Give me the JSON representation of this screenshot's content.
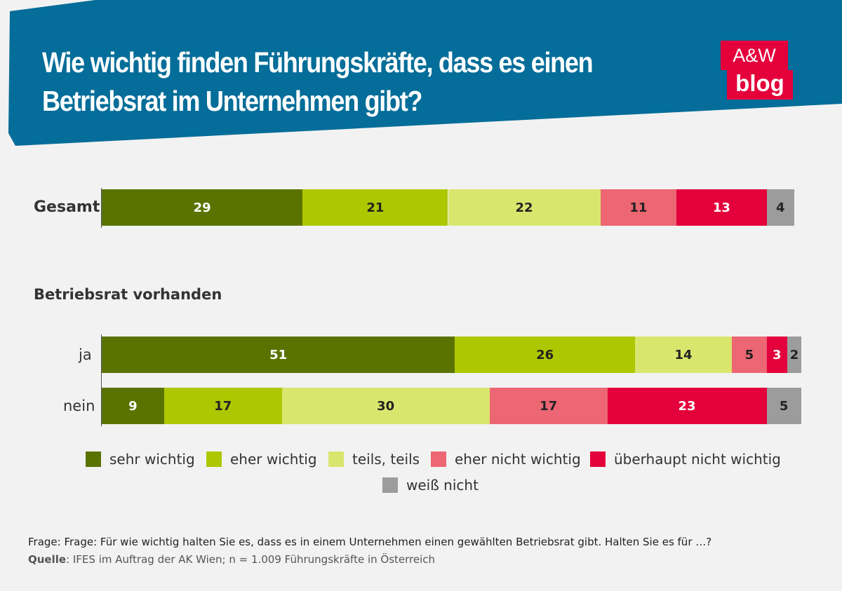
{
  "header": {
    "title_line1": "Wie wichtig finden Führungskräfte, dass es einen",
    "title_line2": "Betriebsrat im Unternehmen gibt?",
    "logo_top": "A&W",
    "logo_bottom": "blog"
  },
  "chart_data": {
    "type": "bar",
    "orientation": "horizontal",
    "stacked": true,
    "group_label": "Betriebsrat vorhanden",
    "categories": [
      "Gesamt",
      "ja",
      "nein"
    ],
    "series": [
      {
        "name": "sehr wichtig",
        "color": "#5a7300",
        "values": [
          29,
          51,
          9
        ]
      },
      {
        "name": "eher wichtig",
        "color": "#adc800",
        "values": [
          21,
          26,
          17
        ]
      },
      {
        "name": "teils, teils",
        "color": "#d9e66e",
        "values": [
          22,
          14,
          30
        ]
      },
      {
        "name": "eher nicht wichtig",
        "color": "#ec6673",
        "values": [
          11,
          5,
          17
        ]
      },
      {
        "name": "überhaupt nicht wichtig",
        "color": "#e4003b",
        "values": [
          13,
          3,
          23
        ]
      },
      {
        "name": "weiß nicht",
        "color": "#9c9c9c",
        "values": [
          4,
          2,
          5
        ]
      }
    ],
    "xlim": [
      0,
      100
    ]
  },
  "footer": {
    "question": "Frage: Frage: Für wie wichtig halten Sie es, dass es in einem Unternehmen einen gewählten Betriebsrat gibt. Halten Sie es für …?",
    "source_label": "Quelle",
    "source_text": ": IFES im Auftrag der AK Wien; n = 1.009 Führungskräfte in Österreich"
  }
}
